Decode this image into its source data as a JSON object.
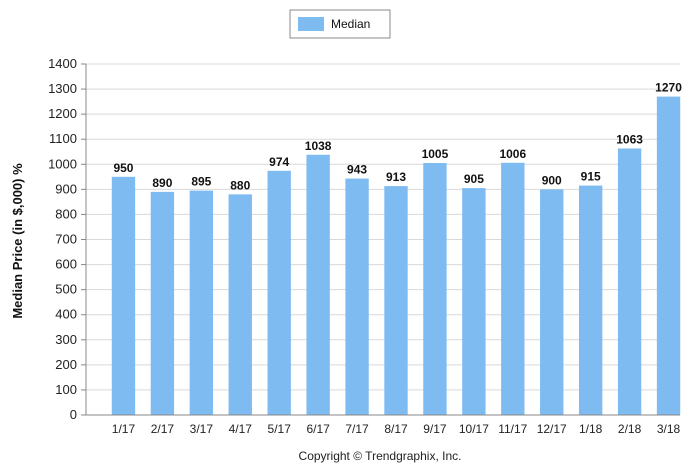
{
  "chart_data": {
    "type": "bar",
    "categories": [
      "1/17",
      "2/17",
      "3/17",
      "4/17",
      "5/17",
      "6/17",
      "7/17",
      "8/17",
      "9/17",
      "10/17",
      "11/17",
      "12/17",
      "1/18",
      "2/18",
      "3/18"
    ],
    "series": [
      {
        "name": "Median",
        "values": [
          950,
          890,
          895,
          880,
          974,
          1038,
          943,
          913,
          1005,
          905,
          1006,
          900,
          915,
          1063,
          1270
        ]
      }
    ],
    "ylabel": "Median Price (in $,000) %",
    "xlabel": "",
    "ylim": [
      0,
      1400
    ],
    "ytick_step": 100,
    "grid": true,
    "legend_position": "top-center",
    "bar_color": "#7dbbf0",
    "footer": "Copyright © Trendgraphix, Inc."
  }
}
